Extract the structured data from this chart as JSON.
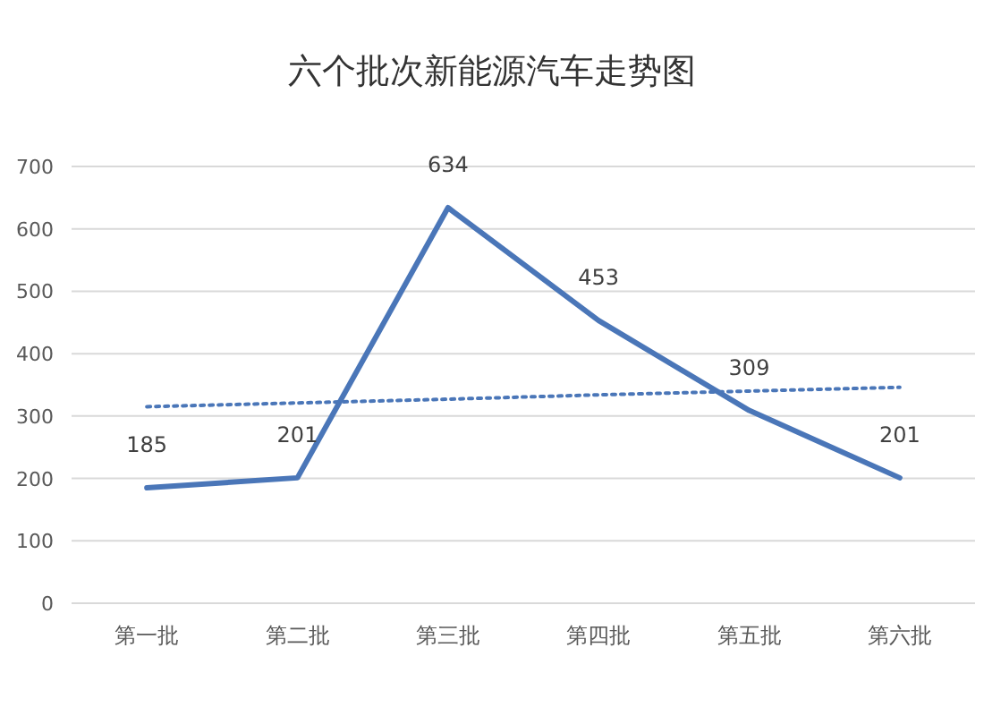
{
  "chart_data": {
    "type": "line",
    "title": "六个批次新能源汽车走势图",
    "categories": [
      "第一批",
      "第二批",
      "第三批",
      "第四批",
      "第五批",
      "第六批"
    ],
    "series": [
      {
        "color": "#4a76b8",
        "values": [
          185,
          201,
          634,
          453,
          309,
          201
        ],
        "value_labels": [
          "185",
          "201",
          "634",
          "453",
          "309",
          "201"
        ],
        "line_style": "solid"
      },
      {
        "color": "#4a76b8",
        "values": [
          315,
          321,
          327,
          334,
          340,
          346
        ],
        "line_style": "dotted"
      }
    ],
    "ylim": [
      0,
      700
    ],
    "yticks": [
      0,
      100,
      200,
      300,
      400,
      500,
      600,
      700
    ],
    "grid": "y",
    "marker": "none"
  }
}
